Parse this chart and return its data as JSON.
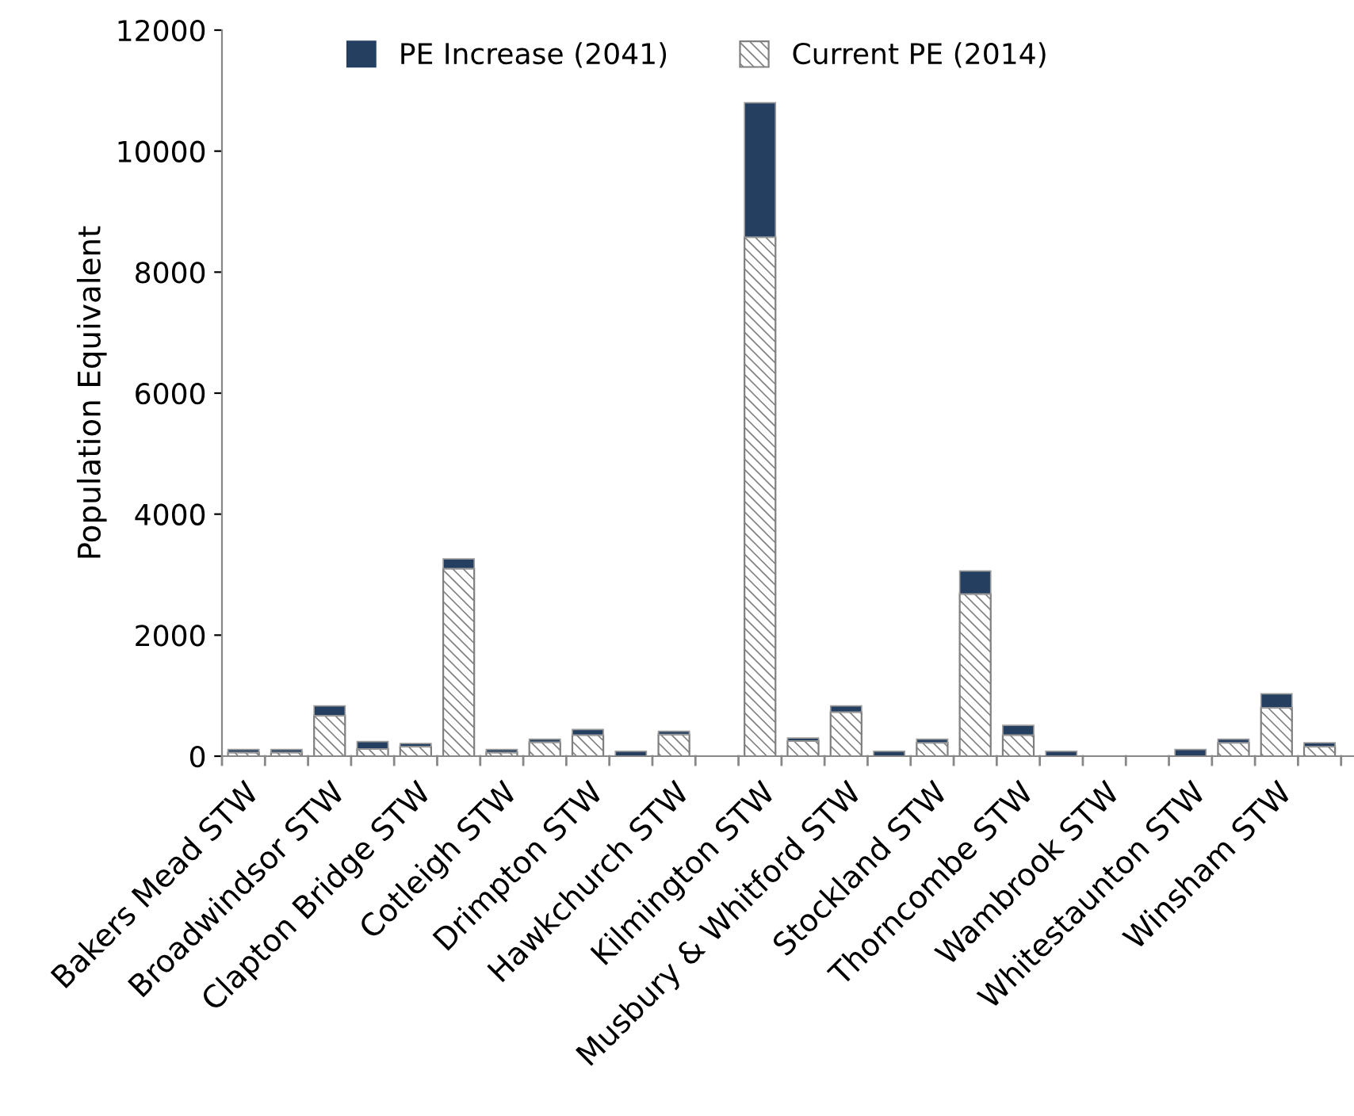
{
  "chart_data": {
    "type": "bar",
    "stacked": true,
    "ylabel": "Population Equivalent",
    "categories": [
      "Bakers Mead STW",
      null,
      "Broadwindsor STW",
      null,
      "Clapton Bridge STW",
      null,
      "Cotleigh STW",
      null,
      "Drimpton STW",
      null,
      "Hawkchurch STW",
      null,
      "Kilmington STW",
      null,
      "Musbury & Whitford STW",
      null,
      "Stockland STW",
      null,
      "Thorncombe STW",
      null,
      "Wambrook STW",
      null,
      "Whitestaunton STW",
      null,
      "Winsham STW",
      null
    ],
    "series": [
      {
        "name": "Current PE (2014)",
        "color": "#808080",
        "values": [
          60,
          60,
          670,
          120,
          160,
          3100,
          60,
          230,
          350,
          null,
          360,
          null,
          8580,
          250,
          730,
          null,
          220,
          2680,
          350,
          null,
          null,
          null,
          null,
          220,
          800,
          160
        ]
      },
      {
        "name": "PE Increase (2041)",
        "color": "#243f60",
        "values": [
          50,
          50,
          160,
          120,
          50,
          160,
          50,
          50,
          90,
          80,
          50,
          null,
          2220,
          50,
          100,
          80,
          60,
          380,
          160,
          80,
          null,
          null,
          110,
          60,
          230,
          60
        ]
      }
    ],
    "ylim": [
      0,
      12000
    ],
    "yticks": [
      0,
      2000,
      4000,
      6000,
      8000,
      10000,
      12000
    ],
    "grid": false,
    "legend": "top"
  }
}
